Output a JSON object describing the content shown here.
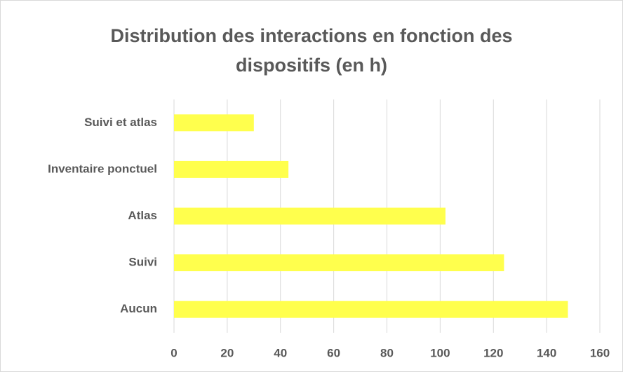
{
  "chart_data": {
    "type": "bar",
    "orientation": "horizontal",
    "title": "Distribution des interactions en fonction des dispositifs (en h)",
    "categories": [
      "Suivi et atlas",
      "Inventaire ponctuel",
      "Atlas",
      "Suivi",
      "Aucun"
    ],
    "values": [
      30,
      43,
      102,
      124,
      148
    ],
    "color": "#ffff4d",
    "xlim": [
      0,
      160
    ],
    "xticks": [
      0,
      20,
      40,
      60,
      80,
      100,
      120,
      140,
      160
    ],
    "grid": true
  }
}
